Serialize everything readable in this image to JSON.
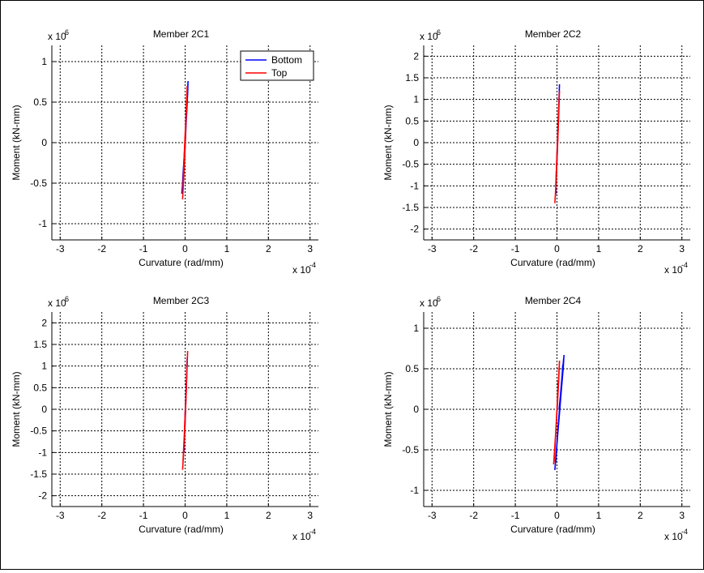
{
  "colors": {
    "bottom": "#0000ff",
    "top": "#ff0000",
    "axis": "#000000",
    "grid": "#000000"
  },
  "legend": {
    "placement": "top-right",
    "items": [
      "Bottom",
      "Top"
    ]
  },
  "chart_data": [
    {
      "type": "line",
      "title": "Member 2C1",
      "xlabel": "Curvature (rad/mm)",
      "ylabel": "Moment (kN-mm)",
      "x_exponent_label": "x 10",
      "x_exponent": "-4",
      "y_exponent_label": "x 10",
      "y_exponent": "6",
      "xlim": [
        -3.2,
        3.2
      ],
      "ylim": [
        -1.2,
        1.2
      ],
      "xticks": [
        -3,
        -2,
        -1,
        0,
        1,
        2,
        3
      ],
      "xtick_labels": [
        "-3",
        "-2",
        "-1",
        "0",
        "1",
        "2",
        "3"
      ],
      "yticks": [
        -1,
        -0.5,
        0,
        0.5,
        1
      ],
      "ytick_labels": [
        "-1",
        "-0.5",
        "0",
        "0.5",
        "1"
      ],
      "grid": true,
      "has_legend": true,
      "series": [
        {
          "name": "Bottom",
          "color": "#0000ff",
          "x": [
            -0.08,
            -0.06,
            -0.03,
            0.0,
            0.03,
            0.06,
            0.07,
            0.05,
            0.02,
            -0.02,
            -0.05,
            -0.07
          ],
          "y": [
            -0.63,
            -0.52,
            -0.3,
            -0.05,
            0.3,
            0.6,
            0.76,
            0.5,
            0.2,
            -0.15,
            -0.4,
            -0.6
          ]
        },
        {
          "name": "Top",
          "color": "#ff0000",
          "x": [
            -0.06,
            -0.04,
            -0.02,
            0.0,
            0.02,
            0.04,
            0.05,
            0.03,
            0.0,
            -0.03,
            -0.05
          ],
          "y": [
            -0.7,
            -0.5,
            -0.3,
            -0.05,
            0.25,
            0.5,
            0.7,
            0.45,
            0.1,
            -0.25,
            -0.55
          ]
        }
      ]
    },
    {
      "type": "line",
      "title": "Member 2C2",
      "xlabel": "Curvature (rad/mm)",
      "ylabel": "Moment (kN-mm)",
      "x_exponent_label": "x 10",
      "x_exponent": "-4",
      "y_exponent_label": "x 10",
      "y_exponent": "6",
      "xlim": [
        -3.2,
        3.2
      ],
      "ylim": [
        -2.25,
        2.25
      ],
      "xticks": [
        -3,
        -2,
        -1,
        0,
        1,
        2,
        3
      ],
      "xtick_labels": [
        "-3",
        "-2",
        "-1",
        "0",
        "1",
        "2",
        "3"
      ],
      "yticks": [
        -2,
        -1.5,
        -1,
        -0.5,
        0,
        0.5,
        1,
        1.5,
        2
      ],
      "ytick_labels": [
        "-2",
        "-1.5",
        "-1",
        "-0.5",
        "0",
        "0.5",
        "1",
        "1.5",
        "2"
      ],
      "grid": true,
      "has_legend": false,
      "series": [
        {
          "name": "Bottom",
          "color": "#0000ff",
          "x": [
            -0.03,
            0.0,
            0.03,
            0.06,
            0.04,
            0.01,
            -0.02
          ],
          "y": [
            -1.2,
            -0.4,
            0.4,
            1.35,
            0.8,
            0.0,
            -0.8
          ]
        },
        {
          "name": "Top",
          "color": "#ff0000",
          "x": [
            -0.05,
            -0.02,
            0.01,
            0.04,
            0.06,
            0.03,
            0.0,
            -0.03
          ],
          "y": [
            -1.4,
            -0.9,
            -0.2,
            0.6,
            1.2,
            0.5,
            -0.3,
            -1.0
          ]
        }
      ]
    },
    {
      "type": "line",
      "title": "Member 2C3",
      "xlabel": "Curvature (rad/mm)",
      "ylabel": "Moment (kN-mm)",
      "x_exponent_label": "x 10",
      "x_exponent": "-4",
      "y_exponent_label": "x 10",
      "y_exponent": "6",
      "xlim": [
        -3.2,
        3.2
      ],
      "ylim": [
        -2.25,
        2.25
      ],
      "xticks": [
        -3,
        -2,
        -1,
        0,
        1,
        2,
        3
      ],
      "xtick_labels": [
        "-3",
        "-2",
        "-1",
        "0",
        "1",
        "2",
        "3"
      ],
      "yticks": [
        -2,
        -1.5,
        -1,
        -0.5,
        0,
        0.5,
        1,
        1.5,
        2
      ],
      "ytick_labels": [
        "-2",
        "-1.5",
        "-1",
        "-0.5",
        "0",
        "0.5",
        "1",
        "1.5",
        "2"
      ],
      "grid": true,
      "has_legend": false,
      "series": [
        {
          "name": "Bottom",
          "color": "#0000ff",
          "x": [
            -0.03,
            0.0,
            0.03,
            0.05,
            0.03,
            0.0,
            -0.02
          ],
          "y": [
            -1.0,
            -0.3,
            0.5,
            1.2,
            0.6,
            -0.1,
            -0.8
          ]
        },
        {
          "name": "Top",
          "color": "#ff0000",
          "x": [
            -0.06,
            -0.03,
            0.0,
            0.03,
            0.06,
            0.04,
            0.01,
            -0.02,
            -0.05
          ],
          "y": [
            -1.4,
            -0.9,
            -0.3,
            0.5,
            1.35,
            0.8,
            0.1,
            -0.6,
            -1.2
          ]
        }
      ]
    },
    {
      "type": "line",
      "title": "Member 2C4",
      "xlabel": "Curvature (rad/mm)",
      "ylabel": "Moment (kN-mm)",
      "x_exponent_label": "x 10",
      "x_exponent": "-4",
      "y_exponent_label": "x 10",
      "y_exponent": "6",
      "xlim": [
        -3.2,
        3.2
      ],
      "ylim": [
        -1.2,
        1.2
      ],
      "xticks": [
        -3,
        -2,
        -1,
        0,
        1,
        2,
        3
      ],
      "xtick_labels": [
        "-3",
        "-2",
        "-1",
        "0",
        "1",
        "2",
        "3"
      ],
      "yticks": [
        -1,
        -0.5,
        0,
        0.5,
        1
      ],
      "ytick_labels": [
        "-1",
        "-0.5",
        "0",
        "0.5",
        "1"
      ],
      "grid": true,
      "has_legend": false,
      "series": [
        {
          "name": "Bottom",
          "color": "#0000ff",
          "x": [
            -0.05,
            -0.02,
            0.02,
            0.06,
            0.1,
            0.14,
            0.17,
            0.15,
            0.1,
            0.05,
            0.08,
            0.12,
            0.16,
            0.13,
            0.08,
            0.03,
            -0.01,
            0.02,
            0.06,
            0.1,
            0.14,
            0.11,
            0.06,
            0.01,
            -0.03
          ],
          "y": [
            -0.75,
            -0.55,
            -0.3,
            -0.05,
            0.2,
            0.45,
            0.67,
            0.5,
            0.25,
            0.0,
            0.15,
            0.4,
            0.62,
            0.42,
            0.1,
            -0.2,
            -0.5,
            -0.3,
            -0.05,
            0.2,
            0.55,
            0.3,
            0.0,
            -0.35,
            -0.65
          ]
        },
        {
          "name": "Top",
          "color": "#ff0000",
          "x": [
            -0.08,
            -0.05,
            -0.02,
            0.01,
            0.04,
            0.06,
            0.04,
            0.01,
            -0.02,
            -0.05,
            -0.07,
            -0.04,
            0.0,
            0.03
          ],
          "y": [
            -0.68,
            -0.45,
            -0.2,
            0.05,
            0.35,
            0.6,
            0.4,
            0.1,
            -0.2,
            -0.5,
            -0.65,
            -0.4,
            0.0,
            0.35
          ]
        }
      ]
    }
  ]
}
